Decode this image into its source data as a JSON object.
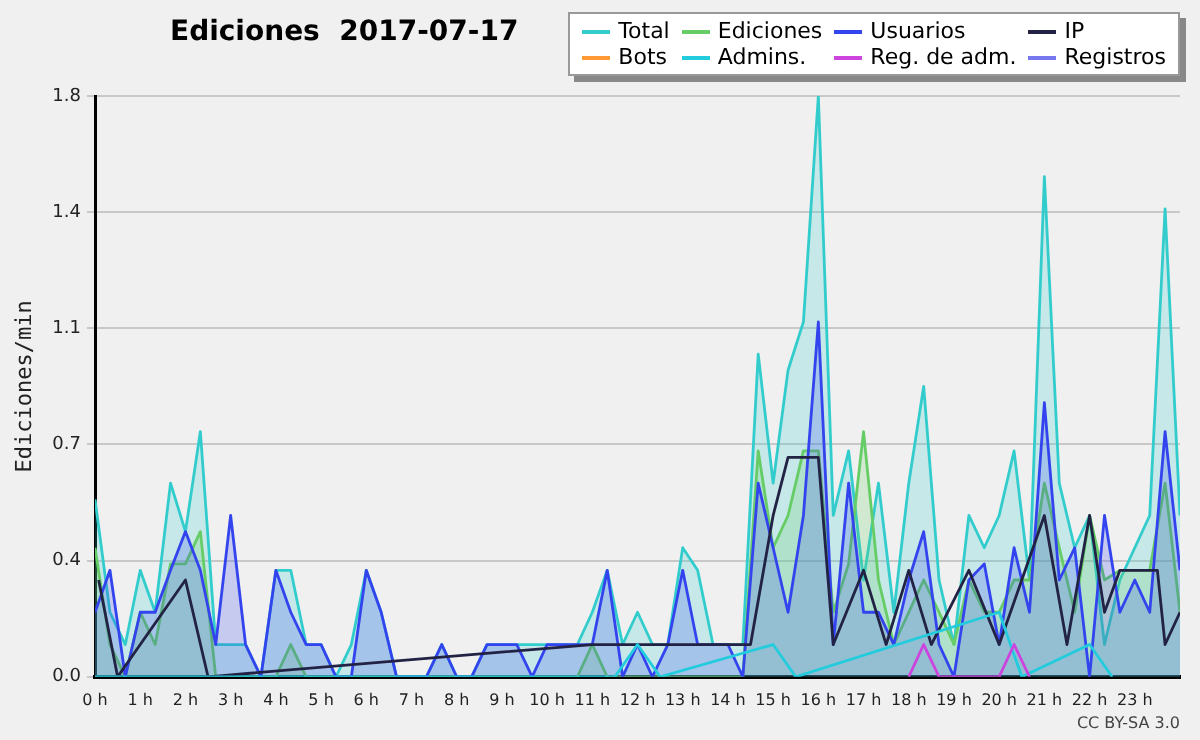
{
  "chart_data": {
    "type": "area",
    "title": "Ediciones  2017-07-17",
    "ylabel": "Ediciones/min",
    "annotations": [
      "CC BY-SA 3.0"
    ],
    "xlim": [
      0,
      24
    ],
    "xticks": [
      {
        "value": 0,
        "label": "0 h"
      },
      {
        "value": 1,
        "label": "1 h"
      },
      {
        "value": 2,
        "label": "2 h"
      },
      {
        "value": 3,
        "label": "3 h"
      },
      {
        "value": 4,
        "label": "4 h"
      },
      {
        "value": 5,
        "label": "5 h"
      },
      {
        "value": 6,
        "label": "6 h"
      },
      {
        "value": 7,
        "label": "7 h"
      },
      {
        "value": 8,
        "label": "8 h"
      },
      {
        "value": 9,
        "label": "9 h"
      },
      {
        "value": 10,
        "label": "10 h"
      },
      {
        "value": 11,
        "label": "11 h"
      },
      {
        "value": 12,
        "label": "12 h"
      },
      {
        "value": 13,
        "label": "13 h"
      },
      {
        "value": 14,
        "label": "14 h"
      },
      {
        "value": 15,
        "label": "15 h"
      },
      {
        "value": 16,
        "label": "16 h"
      },
      {
        "value": 17,
        "label": "17 h"
      },
      {
        "value": 18,
        "label": "18 h"
      },
      {
        "value": 19,
        "label": "19 h"
      },
      {
        "value": 20,
        "label": "20 h"
      },
      {
        "value": 21,
        "label": "21 h"
      },
      {
        "value": 22,
        "label": "22 h"
      },
      {
        "value": 23,
        "label": "23 h"
      }
    ],
    "ylim": [
      0,
      1.8
    ],
    "yticks": [
      {
        "value": 0,
        "label": "0.0"
      },
      {
        "value": 0.36,
        "label": "0.4"
      },
      {
        "value": 0.72,
        "label": "0.7"
      },
      {
        "value": 1.08,
        "label": "1.1"
      },
      {
        "value": 1.44,
        "label": "1.4"
      },
      {
        "value": 1.8,
        "label": "1.8"
      }
    ],
    "grid": "y",
    "legend": "top right",
    "marker": "none",
    "series": [
      {
        "name": "Total",
        "type": "area",
        "color": "#33cccc",
        "x": [
          0,
          0.33,
          0.67,
          1,
          1.33,
          1.67,
          2,
          2.33,
          2.67,
          3,
          3.33,
          3.67,
          4,
          4.33,
          4.67,
          5,
          5.33,
          5.67,
          6,
          6.33,
          6.67,
          7,
          7.33,
          7.67,
          8,
          8.33,
          8.67,
          9,
          9.33,
          9.67,
          10,
          10.33,
          10.67,
          11,
          11.33,
          11.67,
          12,
          12.33,
          12.67,
          13,
          13.33,
          13.67,
          14,
          14.33,
          14.67,
          15,
          15.33,
          15.67,
          16,
          16.33,
          16.67,
          17,
          17.33,
          17.67,
          18,
          18.33,
          18.67,
          19,
          19.33,
          19.67,
          20,
          20.33,
          20.67,
          21,
          21.33,
          21.67,
          22,
          22.33,
          22.67,
          23,
          23.33,
          23.67,
          24
        ],
        "values": [
          0.55,
          0.2,
          0.1,
          0.33,
          0.2,
          0.6,
          0.45,
          0.76,
          0.1,
          0.1,
          0.1,
          0,
          0.33,
          0.33,
          0.1,
          0.1,
          0,
          0.1,
          0.33,
          0.2,
          0,
          0,
          0,
          0.1,
          0,
          0,
          0.1,
          0.1,
          0.1,
          0.1,
          0.1,
          0.1,
          0.1,
          0.2,
          0.33,
          0.1,
          0.2,
          0.1,
          0.1,
          0.4,
          0.33,
          0.1,
          0.1,
          0.1,
          1.0,
          0.6,
          0.95,
          1.1,
          1.8,
          0.5,
          0.7,
          0.3,
          0.6,
          0.2,
          0.6,
          0.9,
          0.3,
          0.1,
          0.5,
          0.4,
          0.5,
          0.7,
          0.3,
          1.55,
          0.6,
          0.4,
          0.5,
          0.1,
          0.3,
          0.4,
          0.5,
          1.45,
          0.5
        ]
      },
      {
        "name": "Ediciones",
        "type": "area",
        "color": "#66cc66",
        "x": [
          0,
          0.33,
          0.67,
          1,
          1.33,
          1.67,
          2,
          2.33,
          2.67,
          4,
          4.33,
          4.67,
          10.67,
          11,
          11.33,
          14.33,
          14.67,
          15,
          15.33,
          15.67,
          16,
          16.33,
          16.67,
          17,
          17.33,
          17.67,
          18,
          18.33,
          18.67,
          19,
          19.33,
          19.67,
          20,
          20.33,
          20.67,
          21,
          21.33,
          21.67,
          22,
          22.33,
          22.67,
          23,
          23.33,
          23.67,
          24
        ],
        "values": [
          0.4,
          0.1,
          0,
          0.2,
          0.1,
          0.35,
          0.35,
          0.45,
          0,
          0,
          0.1,
          0,
          0,
          0.1,
          0,
          0,
          0.7,
          0.4,
          0.5,
          0.7,
          0.7,
          0.2,
          0.35,
          0.76,
          0.3,
          0.1,
          0.2,
          0.3,
          0.2,
          0.1,
          0.3,
          0.2,
          0.2,
          0.3,
          0.3,
          0.6,
          0.4,
          0.2,
          0.5,
          0.3,
          0.33,
          0.33,
          0.33,
          0.6,
          0.2
        ]
      },
      {
        "name": "Usuarios",
        "type": "area",
        "color": "#3344ee",
        "x": [
          0,
          0.33,
          0.67,
          1,
          1.33,
          1.67,
          2,
          2.33,
          2.67,
          3,
          3.33,
          3.67,
          4,
          4.33,
          4.67,
          5,
          5.33,
          5.67,
          6,
          6.33,
          6.67,
          7,
          7.33,
          7.67,
          8,
          8.33,
          8.67,
          9,
          9.33,
          9.67,
          10,
          10.33,
          10.67,
          11,
          11.33,
          11.67,
          12,
          12.33,
          12.67,
          13,
          13.33,
          13.67,
          14,
          14.33,
          14.67,
          15,
          15.33,
          15.67,
          16,
          16.33,
          16.67,
          17,
          17.33,
          17.67,
          18,
          18.33,
          18.67,
          19,
          19.33,
          19.67,
          20,
          20.33,
          20.67,
          21,
          21.33,
          21.67,
          22,
          22.33,
          22.67,
          23,
          23.33,
          23.67,
          24
        ],
        "values": [
          0.2,
          0.33,
          0,
          0.2,
          0.2,
          0.33,
          0.45,
          0.33,
          0.1,
          0.5,
          0.1,
          0,
          0.33,
          0.2,
          0.1,
          0.1,
          0,
          0,
          0.33,
          0.2,
          0,
          0,
          0,
          0.1,
          0,
          0,
          0.1,
          0.1,
          0.1,
          0,
          0.1,
          0.1,
          0.1,
          0.1,
          0.33,
          0,
          0.1,
          0,
          0.1,
          0.33,
          0.1,
          0.1,
          0.1,
          0,
          0.6,
          0.4,
          0.2,
          0.5,
          1.1,
          0.1,
          0.6,
          0.2,
          0.2,
          0.1,
          0.3,
          0.45,
          0.1,
          0,
          0.3,
          0.35,
          0.1,
          0.4,
          0.2,
          0.85,
          0.3,
          0.4,
          0,
          0.5,
          0.2,
          0.3,
          0.2,
          0.76,
          0.33
        ]
      },
      {
        "name": "IP",
        "type": "line",
        "color": "#222244",
        "x": [
          0.08,
          0.5,
          2,
          2.5,
          11,
          14.5,
          15,
          15.33,
          16,
          16.33,
          17,
          17.5,
          18,
          18.5,
          19.33,
          20,
          21,
          21.5,
          22,
          22.33,
          22.67,
          23.5,
          23.67,
          24
        ],
        "values": [
          0.3,
          0,
          0.3,
          0,
          0.1,
          0.1,
          0.5,
          0.68,
          0.68,
          0.1,
          0.33,
          0.1,
          0.33,
          0.1,
          0.33,
          0.1,
          0.5,
          0.1,
          0.5,
          0.2,
          0.33,
          0.33,
          0.1,
          0.2
        ]
      },
      {
        "name": "Bots",
        "type": "line",
        "color": "#ff9933"
      },
      {
        "name": "Admins.",
        "type": "line",
        "color": "#22ccdd",
        "x": [
          0,
          11.5,
          12,
          12.5,
          15,
          15.5,
          20,
          20.5,
          22,
          22.5
        ],
        "values": [
          0,
          0,
          0.1,
          0,
          0.1,
          0,
          0.2,
          0,
          0.1,
          0
        ]
      },
      {
        "name": "Reg. de adm.",
        "type": "line",
        "color": "#cc44dd",
        "x": [
          18,
          18.33,
          18.67,
          20,
          20.33,
          20.67
        ],
        "values": [
          0,
          0.1,
          0,
          0,
          0.1,
          0
        ]
      },
      {
        "name": "Registros",
        "type": "line",
        "color": "#7777ee"
      }
    ]
  }
}
